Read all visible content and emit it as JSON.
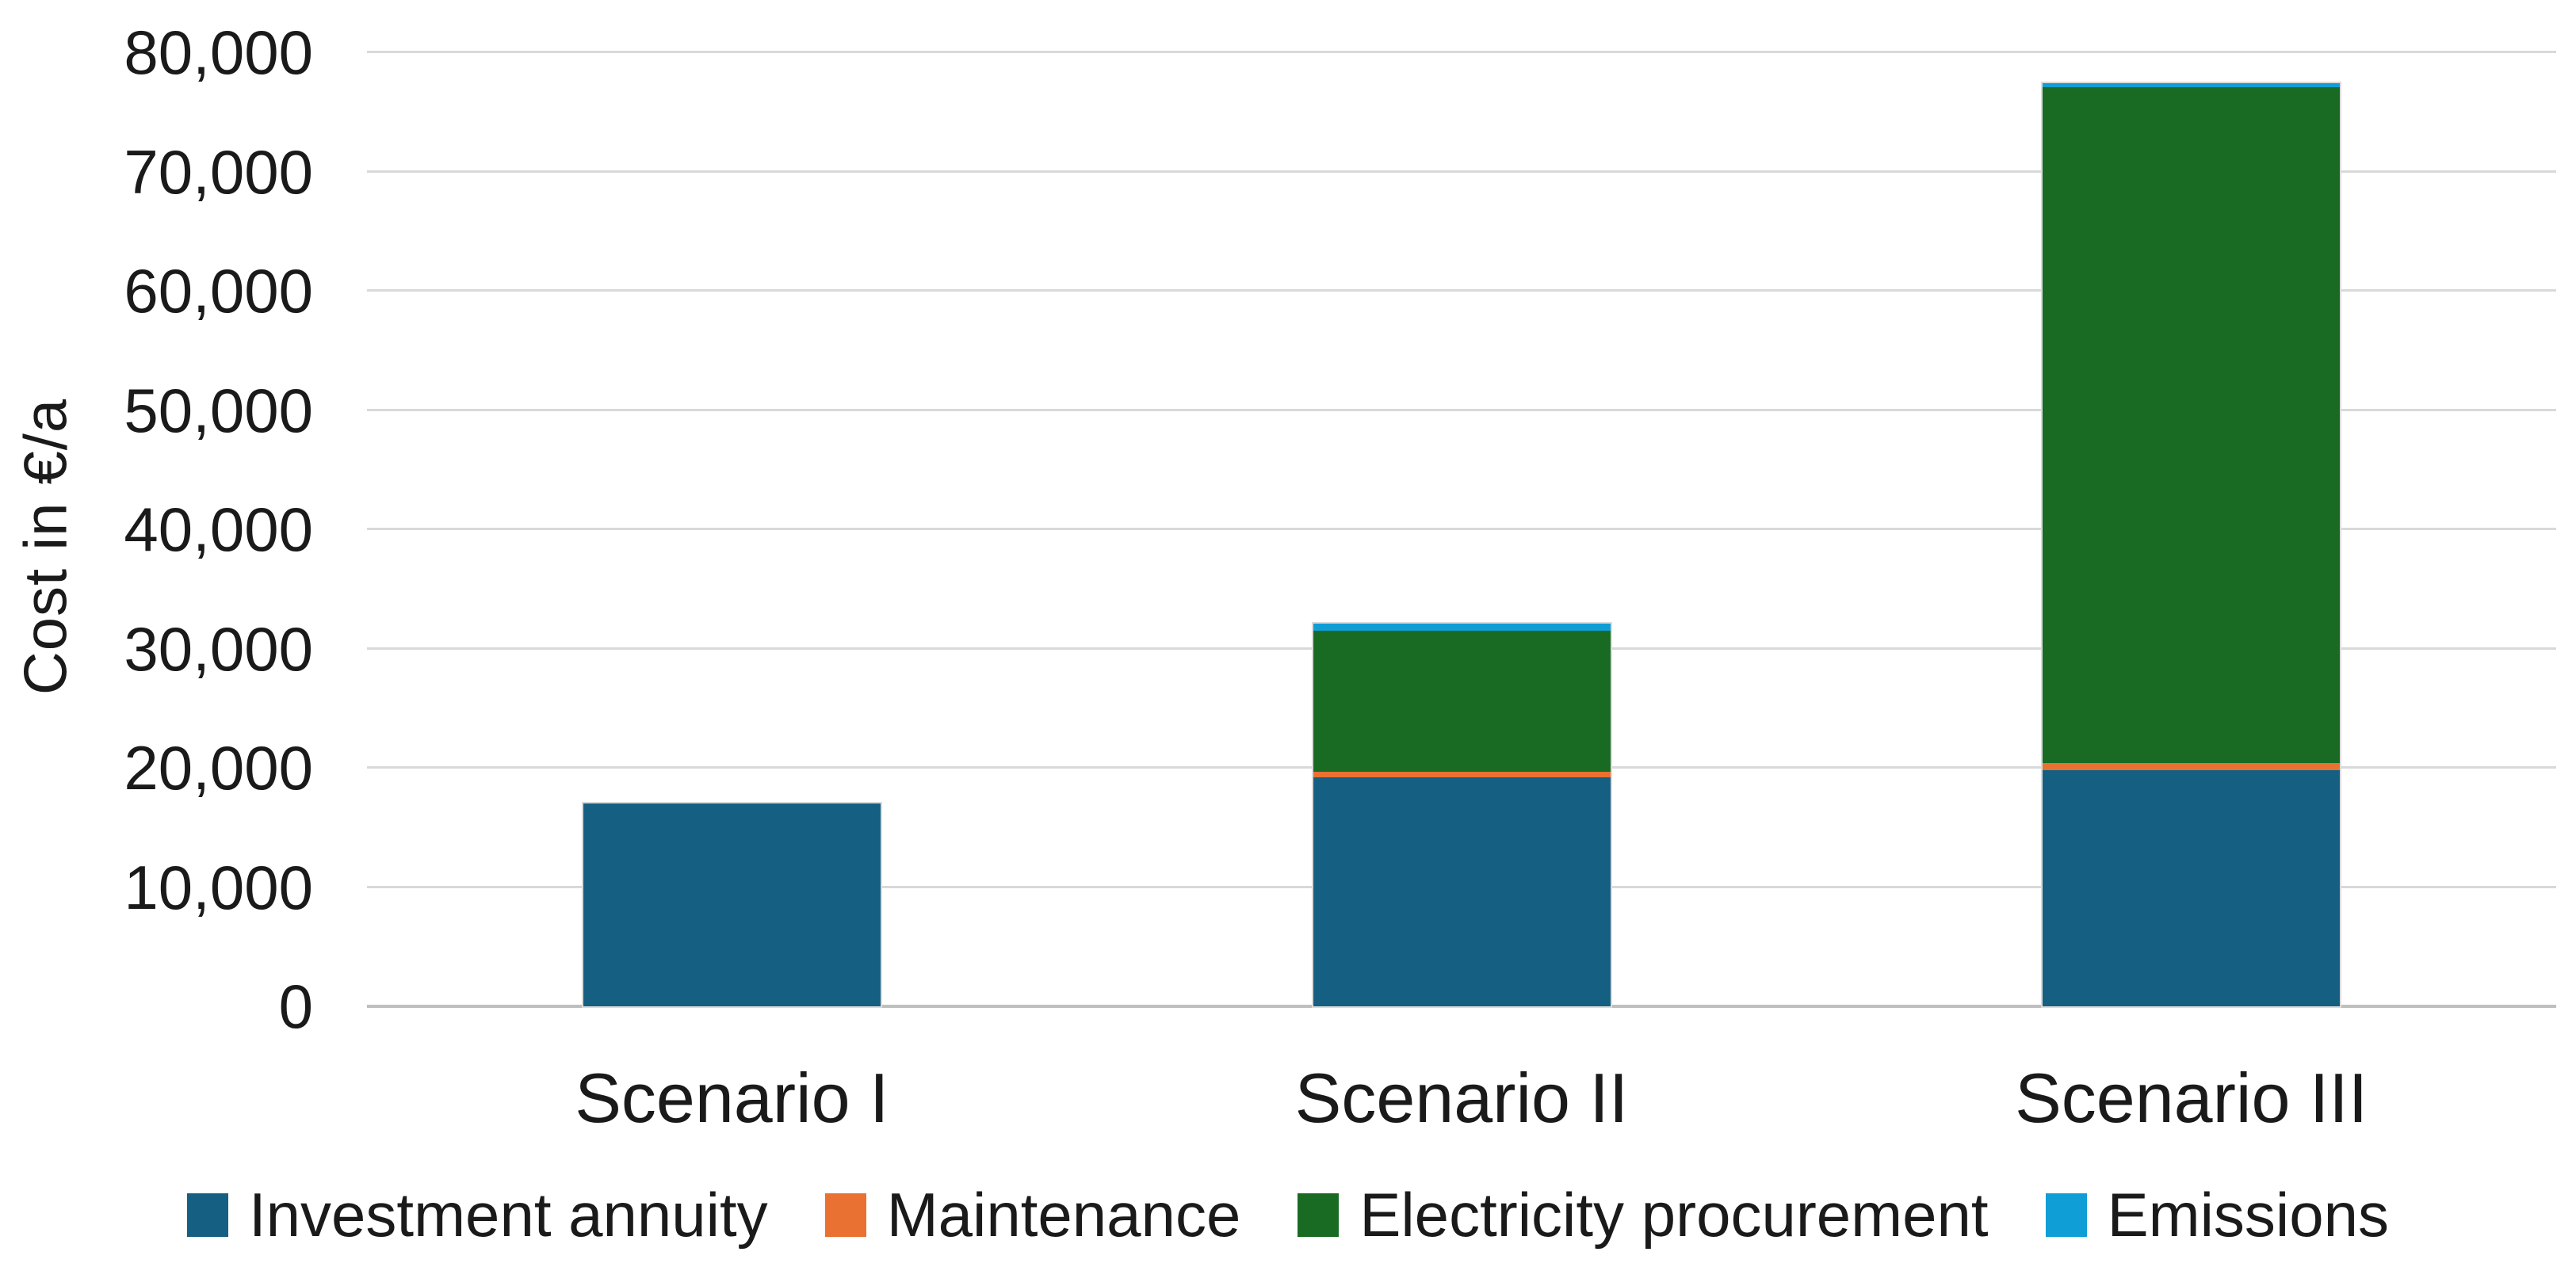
{
  "chart_data": {
    "type": "bar",
    "stacked": true,
    "title": "",
    "ylabel": "Cost in €/a",
    "xlabel": "",
    "categories": [
      "Scenario I",
      "Scenario II",
      "Scenario III"
    ],
    "series": [
      {
        "name": "Investment annuity",
        "color": "#156082",
        "values": [
          17000,
          19200,
          19800
        ]
      },
      {
        "name": "Maintenance",
        "color": "#E97132",
        "values": [
          0,
          500,
          600
        ]
      },
      {
        "name": "Electricity procurement",
        "color": "#196B24",
        "values": [
          0,
          11800,
          56700
        ]
      },
      {
        "name": "Emissions",
        "color": "#0F9ED5",
        "values": [
          0,
          600,
          300
        ]
      }
    ],
    "totals": [
      17000,
      32100,
      77400
    ],
    "ylim": [
      0,
      80000
    ],
    "ytick_step": 10000,
    "ytick_labels": [
      "0",
      "10,000",
      "20,000",
      "30,000",
      "40,000",
      "50,000",
      "60,000",
      "70,000",
      "80,000"
    ],
    "grid": true,
    "legend_position": "bottom",
    "gridline_color": "#D9D9D9",
    "axis_line_color": "#BFBFBF",
    "text_color": "#1a1a1a",
    "background_color": "#FFFFFF"
  }
}
